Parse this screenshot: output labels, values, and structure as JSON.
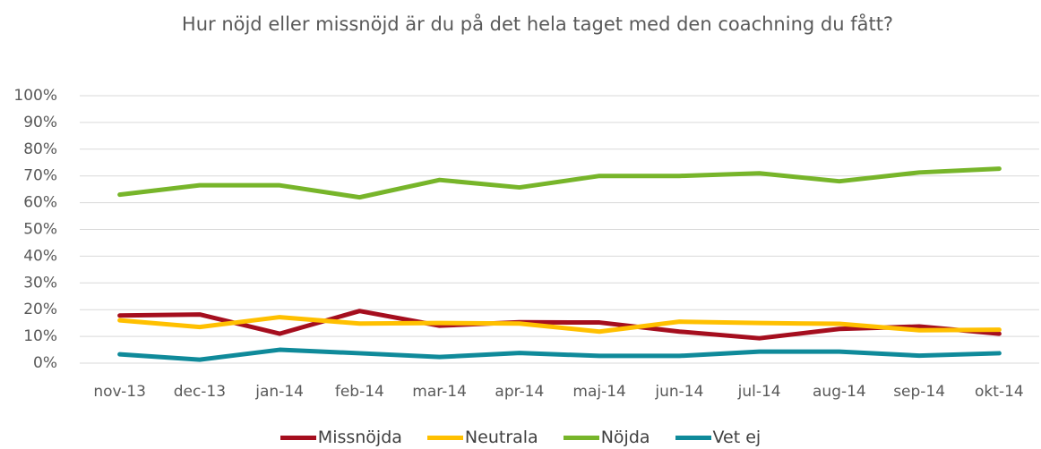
{
  "chart_data": {
    "type": "line",
    "title": "Hur nöjd eller missnöjd är du på det hela taget med den coachning du fått?",
    "categories": [
      "nov-13",
      "dec-13",
      "jan-14",
      "feb-14",
      "mar-14",
      "apr-14",
      "maj-14",
      "jun-14",
      "jul-14",
      "aug-14",
      "sep-14",
      "okt-14"
    ],
    "series": [
      {
        "name": "Missnöjda",
        "color": "#a50e1e",
        "values": [
          17.8,
          18.2,
          11,
          19.5,
          14,
          15.3,
          15.2,
          11.8,
          9.3,
          12.8,
          13.7,
          11
        ]
      },
      {
        "name": "Neutrala",
        "color": "#ffc000",
        "values": [
          16,
          13.5,
          17.2,
          14.8,
          15,
          14.8,
          11.8,
          15.5,
          15,
          14.7,
          12.3,
          12.5
        ]
      },
      {
        "name": "Nöjda",
        "color": "#77b52a",
        "values": [
          63,
          66.5,
          66.5,
          62,
          68.5,
          65.7,
          70,
          70,
          71,
          68,
          71.3,
          72.7
        ]
      },
      {
        "name": "Vet ej",
        "color": "#0f8a9a",
        "values": [
          3.3,
          1.3,
          5,
          3.7,
          2.3,
          3.8,
          2.7,
          2.7,
          4.3,
          4.3,
          2.8,
          3.7
        ]
      }
    ],
    "ylim": [
      0,
      100
    ],
    "yticks": [
      {
        "value": 0,
        "label": "0%"
      },
      {
        "value": 10,
        "label": "10%"
      },
      {
        "value": 20,
        "label": "20%"
      },
      {
        "value": 30,
        "label": "30%"
      },
      {
        "value": 40,
        "label": "40%"
      },
      {
        "value": 50,
        "label": "50%"
      },
      {
        "value": 60,
        "label": "60%"
      },
      {
        "value": 70,
        "label": "70%"
      },
      {
        "value": 80,
        "label": "80%"
      },
      {
        "value": 90,
        "label": "90%"
      },
      {
        "value": 100,
        "label": "100%"
      }
    ],
    "grid": true,
    "legend": "bottom"
  }
}
